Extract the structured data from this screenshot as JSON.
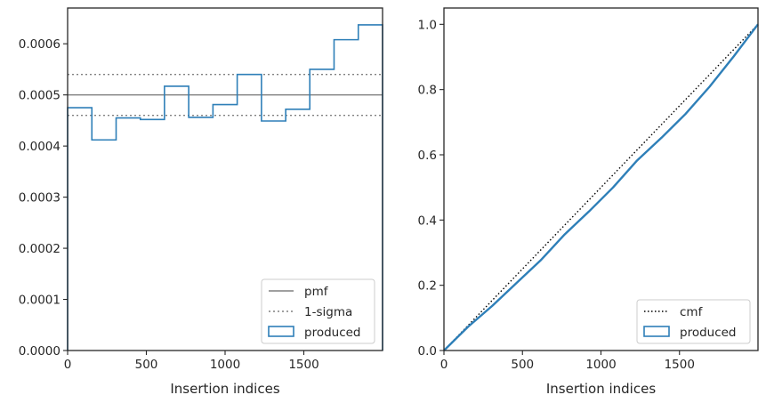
{
  "chart_data": [
    {
      "type": "step",
      "xlabel": "Insertion indices",
      "ylabel": "",
      "xlim": [
        0,
        2000
      ],
      "ylim": [
        0,
        0.00067
      ],
      "xticks": [
        0,
        500,
        1000,
        1500
      ],
      "xtick_labels": [
        "0",
        "500",
        "1000",
        "1500"
      ],
      "yticks": [
        0,
        0.0001,
        0.0002,
        0.0003,
        0.0004,
        0.0005,
        0.0006
      ],
      "ytick_labels": [
        "0.0000",
        "0.0001",
        "0.0002",
        "0.0003",
        "0.0004",
        "0.0005",
        "0.0006"
      ],
      "pmf": 0.0005,
      "sigma_band": [
        0.00046,
        0.00054
      ],
      "histogram": {
        "bin_edges": [
          0,
          154,
          308,
          462,
          615,
          769,
          923,
          1077,
          1231,
          1385,
          1538,
          1692,
          1846,
          2000
        ],
        "values": [
          0.000475,
          0.000412,
          0.000455,
          0.000452,
          0.000517,
          0.000456,
          0.000481,
          0.00054,
          0.000449,
          0.000472,
          0.00055,
          0.000608,
          0.000637
        ]
      },
      "legend": {
        "position": "lower-right",
        "entries": [
          "pmf",
          "1-sigma",
          "produced"
        ]
      },
      "colors": {
        "produced": "#2e7fb8",
        "pmf": "#808080",
        "sigma": "#808080"
      }
    },
    {
      "type": "line",
      "xlabel": "Insertion indices",
      "ylabel": "",
      "xlim": [
        0,
        2000
      ],
      "ylim": [
        0,
        1.05
      ],
      "xticks": [
        0,
        500,
        1000,
        1500
      ],
      "xtick_labels": [
        "0",
        "500",
        "1000",
        "1500"
      ],
      "yticks": [
        0,
        0.2,
        0.4,
        0.6,
        0.8,
        1.0
      ],
      "ytick_labels": [
        "0.0",
        "0.2",
        "0.4",
        "0.6",
        "0.8",
        "1.0"
      ],
      "cmf": {
        "x": [
          0,
          2000
        ],
        "y": [
          0,
          1.0
        ]
      },
      "produced": {
        "x": [
          0,
          154,
          308,
          462,
          615,
          769,
          923,
          1077,
          1231,
          1385,
          1538,
          1692,
          1846,
          2000
        ],
        "y": [
          0,
          0.073,
          0.137,
          0.207,
          0.276,
          0.356,
          0.426,
          0.5,
          0.583,
          0.652,
          0.725,
          0.809,
          0.902,
          1.0
        ]
      },
      "legend": {
        "position": "lower-right",
        "entries": [
          "cmf",
          "produced"
        ]
      },
      "colors": {
        "produced": "#2e7fb8",
        "cmf": "#000000"
      }
    }
  ]
}
